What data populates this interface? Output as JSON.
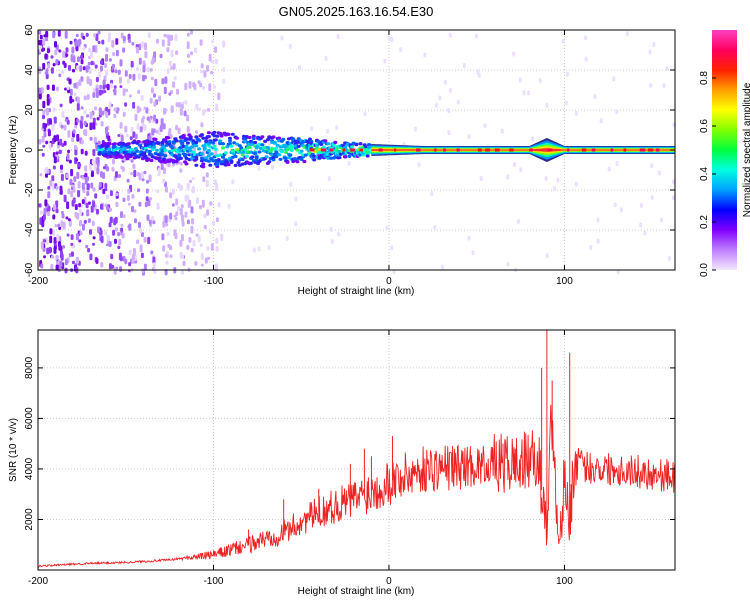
{
  "title": "GN05.2025.163.16.54.E30",
  "chart_data": [
    {
      "type": "heatmap",
      "xlabel": "Height of straight line (km)",
      "ylabel": "Frequency (Hz)",
      "xlim": [
        -200,
        163
      ],
      "ylim": [
        -60,
        60
      ],
      "xticks": [
        -200,
        -100,
        0,
        100
      ],
      "yticks": [
        -60,
        -40,
        -20,
        0,
        20,
        40,
        60
      ],
      "colorbar": {
        "label": "Normalized spectral amplitude",
        "range": [
          0,
          1
        ],
        "ticks": [
          "0.0",
          "0.2",
          "0.4",
          "0.6",
          "0.8"
        ],
        "colors": [
          "#f2e6ff",
          "#c080ff",
          "#8000ff",
          "#0000ff",
          "#00a0ff",
          "#00ffe0",
          "#00ff40",
          "#80ff00",
          "#ffff00",
          "#ffa000",
          "#ff2000",
          "#ff0060",
          "#ff40c0"
        ]
      },
      "ridge": {
        "frequency_hz": 0,
        "x_start_km": -165,
        "solid_from_km": -10,
        "width_hz": [
          [
            -165,
            3
          ],
          [
            -140,
            5
          ],
          [
            -100,
            9
          ],
          [
            -75,
            7
          ],
          [
            -50,
            6
          ],
          [
            -30,
            4
          ],
          [
            -10,
            3
          ],
          [
            20,
            2
          ],
          [
            80,
            2
          ],
          [
            90,
            6
          ],
          [
            100,
            2
          ],
          [
            163,
            2
          ]
        ]
      },
      "noise_region_km": [
        -200,
        -95
      ],
      "grid": true
    },
    {
      "type": "line",
      "xlabel": "Height of straight line (km)",
      "ylabel": "SNR (10 * v/v)",
      "xlim": [
        -200,
        163
      ],
      "ylim": [
        0,
        9500
      ],
      "xticks": [
        -200,
        -100,
        0,
        100
      ],
      "yticks": [
        2000,
        4000,
        6000,
        8000
      ],
      "color": "#ee2222",
      "grid": true,
      "series": [
        {
          "values": {
            "x": [
              -200,
              -175,
              -150,
              -125,
              -100,
              -80,
              -60,
              -40,
              -20,
              -5,
              0,
              20,
              40,
              60,
              70,
              80,
              85,
              88,
              90,
              92,
              95,
              98,
              100,
              103,
              105,
              110,
              130,
              163
            ],
            "y": [
              150,
              250,
              300,
              400,
              600,
              1000,
              1500,
              2300,
              2800,
              3300,
              3500,
              4000,
              4100,
              4200,
              4200,
              4300,
              4500,
              2500,
              1200,
              6500,
              3000,
              1500,
              3800,
              1800,
              4000,
              4100,
              4000,
              3700
            ]
          },
          "spikes": [
            {
              "x": -80,
              "y": 1600
            },
            {
              "x": -60,
              "y": 2800
            },
            {
              "x": -40,
              "y": 3200
            },
            {
              "x": -22,
              "y": 4200
            },
            {
              "x": -14,
              "y": 4800
            },
            {
              "x": -10,
              "y": 4500
            },
            {
              "x": 2,
              "y": 5300
            },
            {
              "x": 32,
              "y": 4600
            },
            {
              "x": 65,
              "y": 5000
            },
            {
              "x": 72,
              "y": 4800
            },
            {
              "x": 87,
              "y": 8000
            },
            {
              "x": 90,
              "y": 9500
            },
            {
              "x": 93,
              "y": 7500
            },
            {
              "x": 103,
              "y": 8600
            }
          ]
        }
      ]
    }
  ]
}
